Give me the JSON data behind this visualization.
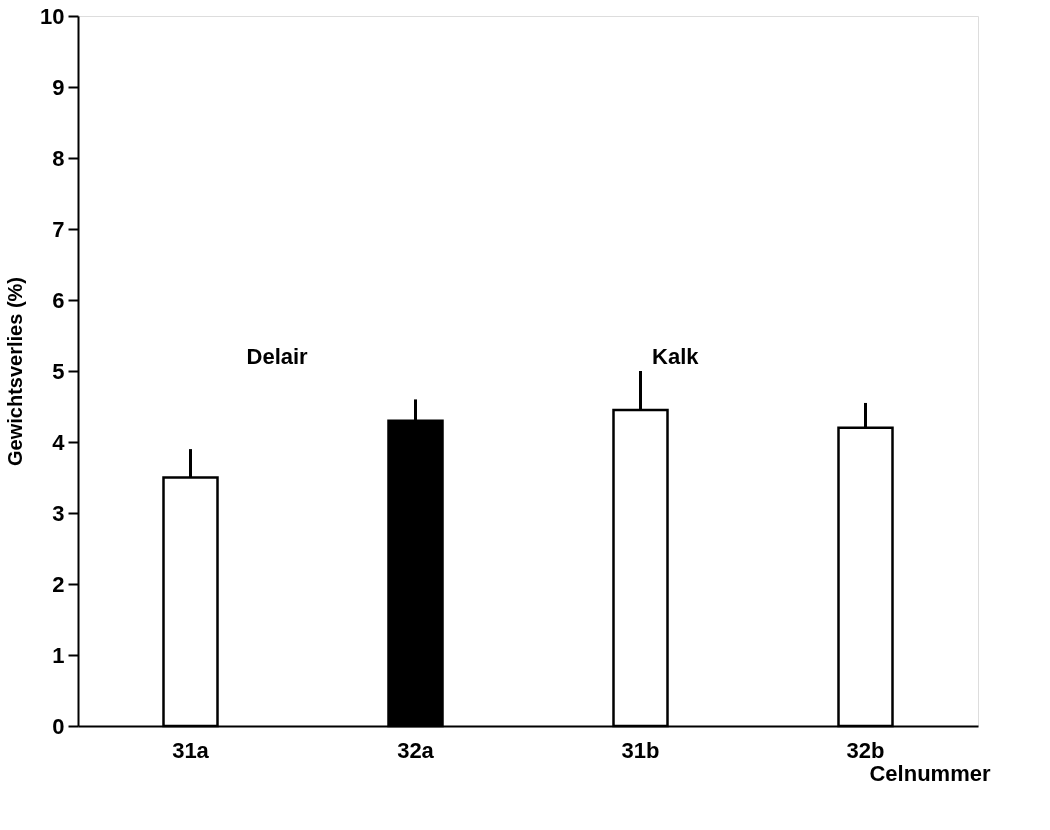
{
  "chart_data": {
    "type": "bar",
    "xlabel": "Celnummer",
    "ylabel": "Gewichtsverlies (%)",
    "categories": [
      "31a",
      "32a",
      "31b",
      "32b"
    ],
    "values": [
      3.5,
      4.3,
      4.45,
      4.2
    ],
    "colors": [
      "#ffffff",
      "#000000",
      "#ffffff",
      "#ffffff"
    ],
    "errors": [
      [
        3.5,
        3.9
      ],
      [
        4.3,
        4.6
      ],
      [
        4.45,
        5.0
      ],
      [
        4.2,
        4.55
      ]
    ],
    "ylim": [
      0,
      10
    ],
    "yticks": [
      0,
      1,
      2,
      3,
      4,
      5,
      6,
      7,
      8,
      9,
      10
    ],
    "annotations": [
      "Delair",
      "Kalk"
    ],
    "grid": false
  }
}
